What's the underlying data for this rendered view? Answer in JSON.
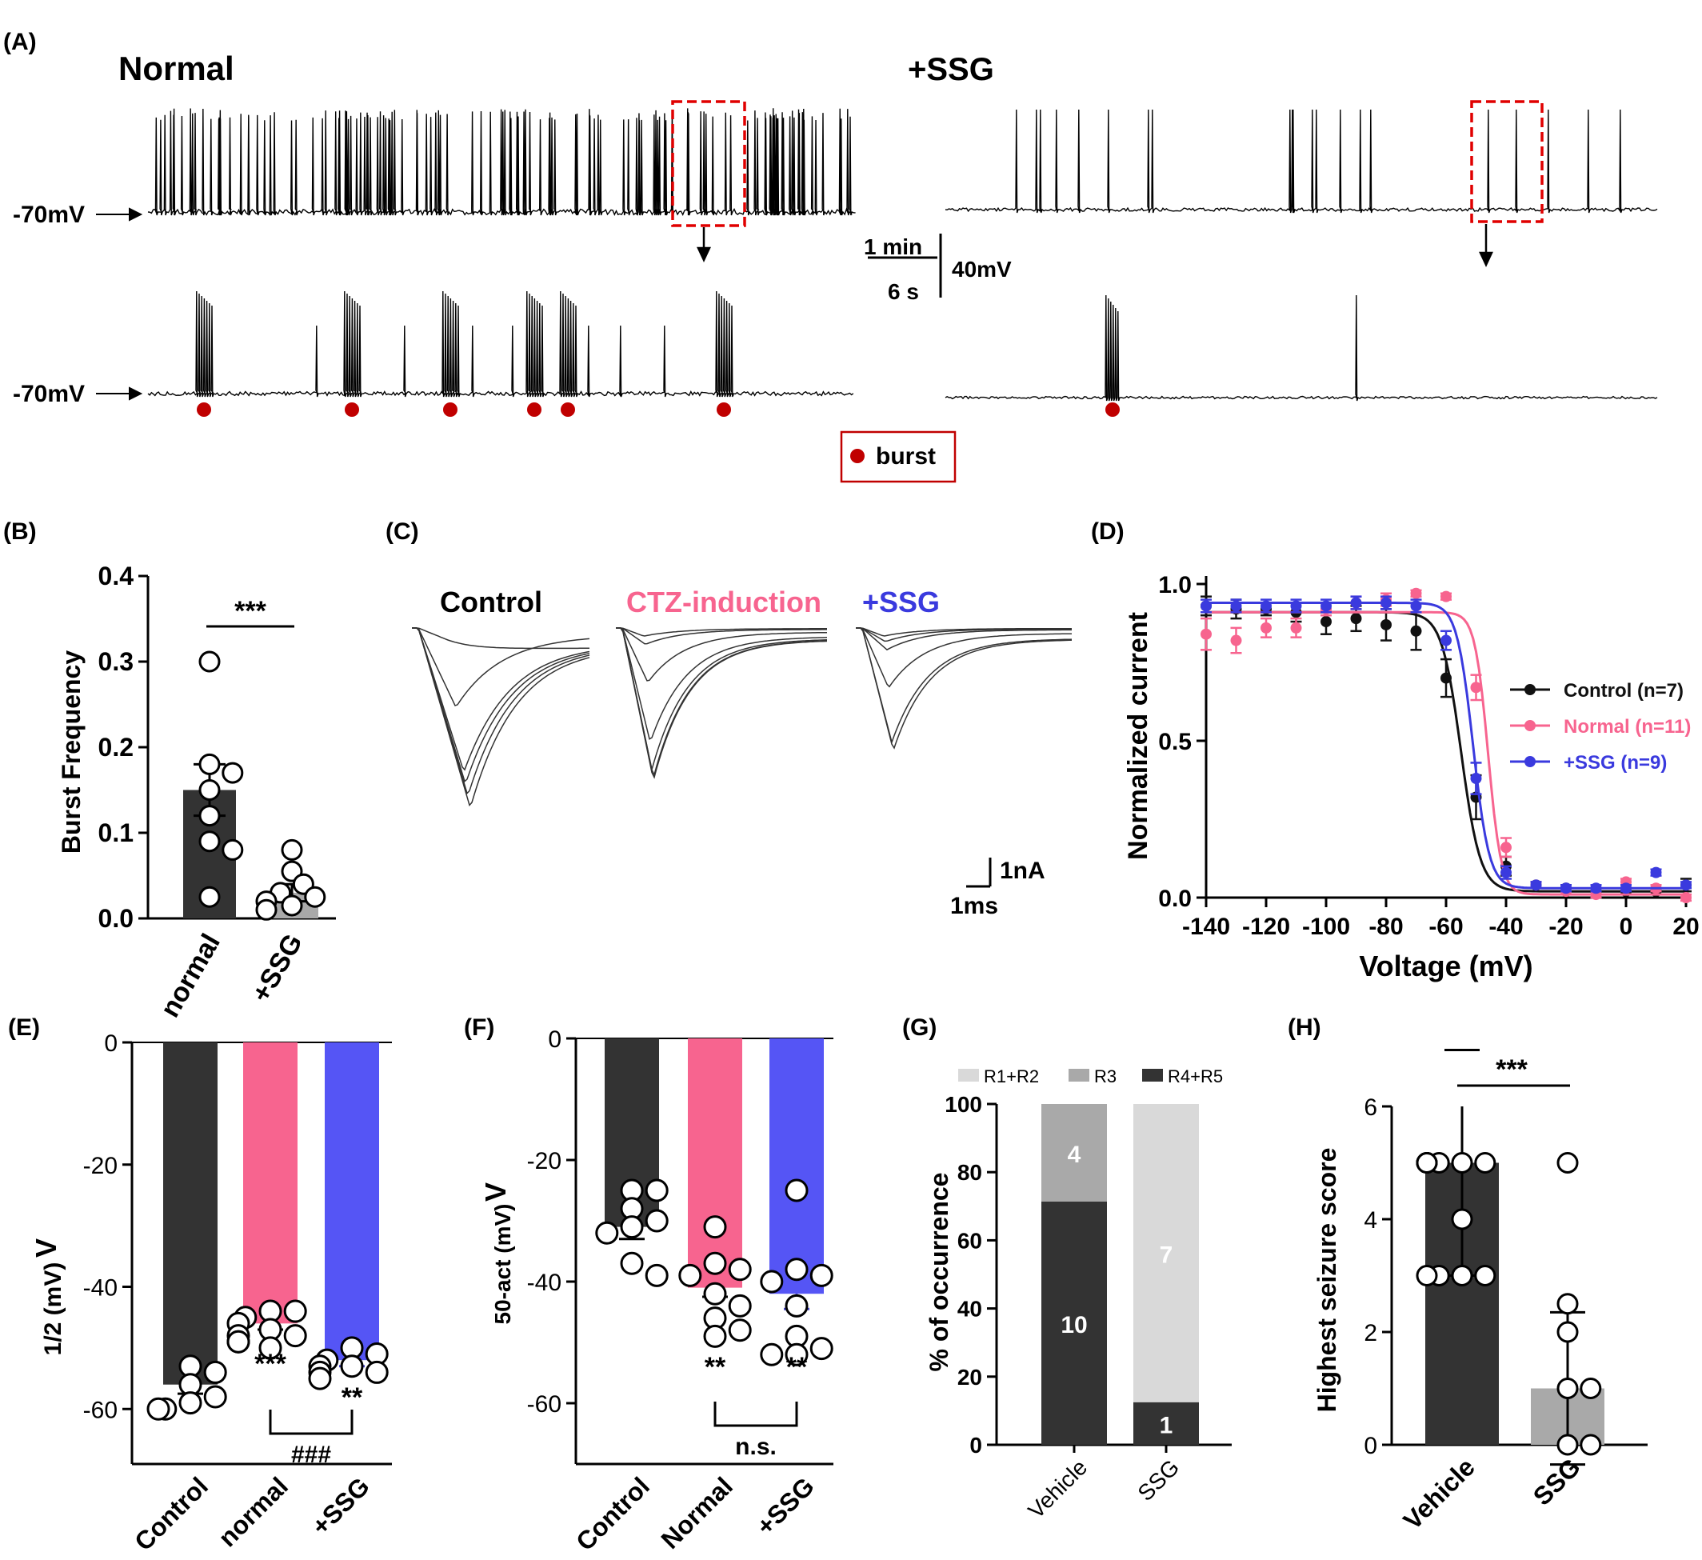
{
  "colors": {
    "black": "#000000",
    "dark": "#333333",
    "pink": "#F7648F",
    "blue": "#5555F5",
    "gray": "#A9A9A9",
    "light": "#D9D9D9",
    "red": "#C00000",
    "ctrl": "#111111"
  },
  "panelA": {
    "label": "(A)",
    "normal_title": "Normal",
    "ssg_title": "+SSG",
    "vm_label": "-70mV",
    "scale_time_top": "1 min",
    "scale_time_bottom": "6 s",
    "scale_voltage": "40mV",
    "legend_label": "burst"
  },
  "chart_data": [
    {
      "id": "B",
      "type": "bar",
      "panel_label": "(B)",
      "categories": [
        "normal",
        "+SSG"
      ],
      "values": [
        0.15,
        0.03
      ],
      "error": [
        0.03,
        0.01
      ],
      "points": [
        [
          0.3,
          0.18,
          0.17,
          0.15,
          0.12,
          0.09,
          0.08,
          0.025
        ],
        [
          0.08,
          0.055,
          0.04,
          0.03,
          0.025,
          0.02,
          0.015,
          0.01
        ]
      ],
      "ylabel": "Burst  Frequency",
      "ylim": [
        0,
        0.4
      ],
      "yticks": [
        "0.0",
        "0.1",
        "0.2",
        "0.3",
        "0.4"
      ],
      "annotation": "***",
      "bar_colors": [
        "#333333",
        "#A9A9A9"
      ]
    },
    {
      "id": "C",
      "type": "trace",
      "panel_label": "(C)",
      "groups": [
        "Control",
        "CTZ-induction",
        "+SSG"
      ],
      "group_colors": [
        "#000000",
        "#F7648F",
        "#3A3ADE"
      ],
      "scale_current": "1nA",
      "scale_time": "1ms"
    },
    {
      "id": "D",
      "type": "line",
      "panel_label": "(D)",
      "xlabel": "Voltage  (mV)",
      "ylabel": "Normalized current",
      "xlim": [
        -140,
        20
      ],
      "ylim": [
        0,
        1
      ],
      "xticks": [
        "-140",
        "-120",
        "-100",
        "-80",
        "-60",
        "-40",
        "-20",
        "0",
        "20"
      ],
      "yticks": [
        "0.0",
        "0.5",
        "1.0"
      ],
      "legend_position": "right",
      "x": [
        -140,
        -130,
        -120,
        -110,
        -100,
        -90,
        -80,
        -70,
        -60,
        -50,
        -40,
        -30,
        -20,
        -10,
        0,
        10,
        20
      ],
      "series": [
        {
          "name": "Control (n=7)",
          "color": "#111111",
          "v_half": -55,
          "k": 3.2,
          "top": 0.91,
          "bottom": 0.02,
          "y": [
            0.93,
            0.92,
            0.92,
            0.91,
            0.88,
            0.89,
            0.87,
            0.85,
            0.7,
            0.32,
            0.1,
            0.04,
            0.03,
            0.02,
            0.02,
            0.02,
            0.04
          ],
          "err": [
            0.03,
            0.03,
            0.02,
            0.03,
            0.04,
            0.04,
            0.05,
            0.06,
            0.06,
            0.07,
            0.03,
            0.01,
            0.01,
            0.01,
            0.01,
            0.01,
            0.02
          ]
        },
        {
          "name": "Normal (n=11)",
          "color": "#F7648F",
          "v_half": -46,
          "k": 2.2,
          "top": 0.91,
          "bottom": 0.01,
          "y": [
            0.84,
            0.82,
            0.86,
            0.86,
            0.92,
            0.94,
            0.95,
            0.97,
            0.96,
            0.67,
            0.16,
            0.04,
            0.02,
            0.01,
            0.05,
            0.03,
            0.0
          ],
          "err": [
            0.05,
            0.04,
            0.03,
            0.03,
            0.02,
            0.02,
            0.02,
            0.01,
            0.01,
            0.04,
            0.03,
            0.01,
            0.01,
            0.01,
            0.01,
            0.01,
            0.01
          ]
        },
        {
          "name": "+SSG (n=9)",
          "color": "#3A3ADE",
          "v_half": -51,
          "k": 2.7,
          "top": 0.94,
          "bottom": 0.03,
          "y": [
            0.93,
            0.93,
            0.93,
            0.93,
            0.93,
            0.94,
            0.94,
            0.93,
            0.82,
            0.38,
            0.08,
            0.04,
            0.03,
            0.03,
            0.03,
            0.08,
            0.04
          ],
          "err": [
            0.02,
            0.02,
            0.02,
            0.02,
            0.02,
            0.02,
            0.02,
            0.02,
            0.03,
            0.05,
            0.02,
            0.01,
            0.01,
            0.01,
            0.01,
            0.01,
            0.01
          ]
        }
      ]
    },
    {
      "id": "E",
      "type": "bar",
      "panel_label": "(E)",
      "categories": [
        "Control",
        "normal",
        "+SSG"
      ],
      "values": [
        -56,
        -46,
        -52
      ],
      "error": [
        1.5,
        1.0,
        1.0
      ],
      "points": [
        [
          -53,
          -54,
          -56,
          -58,
          -59,
          -60,
          -60
        ],
        [
          -44,
          -44,
          -45,
          -46,
          -47,
          -48,
          -48,
          -49,
          -49,
          -50
        ],
        [
          -50,
          -51,
          -52,
          -53,
          -53,
          -54,
          -54,
          -55
        ]
      ],
      "ylabel": "V1/2  (mV)",
      "ylim": [
        -69,
        0
      ],
      "yticks": [
        "0",
        "-20",
        "-40",
        "-60"
      ],
      "annotations": [
        "",
        "***",
        "**"
      ],
      "bracket_label": "###",
      "bar_colors": [
        "#333333",
        "#F7648F",
        "#5555F5"
      ]
    },
    {
      "id": "F",
      "type": "bar",
      "panel_label": "(F)",
      "categories": [
        "Control",
        "Normal",
        "+SSG"
      ],
      "values": [
        -31,
        -41,
        -42
      ],
      "error": [
        2,
        1.5,
        2.5
      ],
      "points": [
        [
          -25,
          -25,
          -28,
          -30,
          -31,
          -32,
          -37,
          -39
        ],
        [
          -31,
          -37,
          -38,
          -39,
          -42,
          -44,
          -46,
          -48,
          -49
        ],
        [
          -25,
          -38,
          -39,
          -40,
          -44,
          -49,
          -51,
          -52,
          -52
        ]
      ],
      "ylabel": "V50-act  (mV)",
      "ylim": [
        -70,
        0
      ],
      "yticks": [
        "0",
        "-20",
        "-40",
        "-60"
      ],
      "annotations": [
        "",
        "**",
        "**"
      ],
      "bracket_label": "n.s.",
      "bar_colors": [
        "#333333",
        "#F7648F",
        "#5555F5"
      ]
    },
    {
      "id": "G",
      "type": "bar",
      "subtype": "stacked",
      "panel_label": "(G)",
      "categories": [
        "Vehicle",
        "SSG"
      ],
      "series": [
        {
          "name": "R4+R5",
          "values": [
            71.4,
            12.5
          ],
          "counts": [
            "10",
            "1"
          ],
          "color": "#333333"
        },
        {
          "name": "R3",
          "values": [
            28.6,
            0
          ],
          "counts": [
            "4",
            ""
          ],
          "color": "#A9A9A9"
        },
        {
          "name": "R1+R2",
          "values": [
            0,
            87.5
          ],
          "counts": [
            "",
            "7"
          ],
          "color": "#D9D9D9"
        }
      ],
      "ylabel": "% of occurrence",
      "ylim": [
        0,
        100
      ],
      "yticks": [
        "0",
        "20",
        "40",
        "60",
        "80",
        "100"
      ],
      "legend_position": "top"
    },
    {
      "id": "H",
      "type": "bar",
      "panel_label": "(H)",
      "categories": [
        "Vehicle",
        "SSG"
      ],
      "values": [
        5,
        1
      ],
      "error": [
        2,
        1.35
      ],
      "points": [
        [
          5,
          5,
          5,
          5,
          5,
          5,
          5,
          4,
          3,
          3,
          3,
          3
        ],
        [
          5,
          2.5,
          2,
          1,
          1,
          0,
          0
        ]
      ],
      "ylabel": "Highest seizure score",
      "ylim": [
        0,
        6
      ],
      "yticks": [
        "0",
        "2",
        "4",
        "6"
      ],
      "annotation": "***",
      "bar_colors": [
        "#333333",
        "#A9A9A9"
      ]
    }
  ]
}
